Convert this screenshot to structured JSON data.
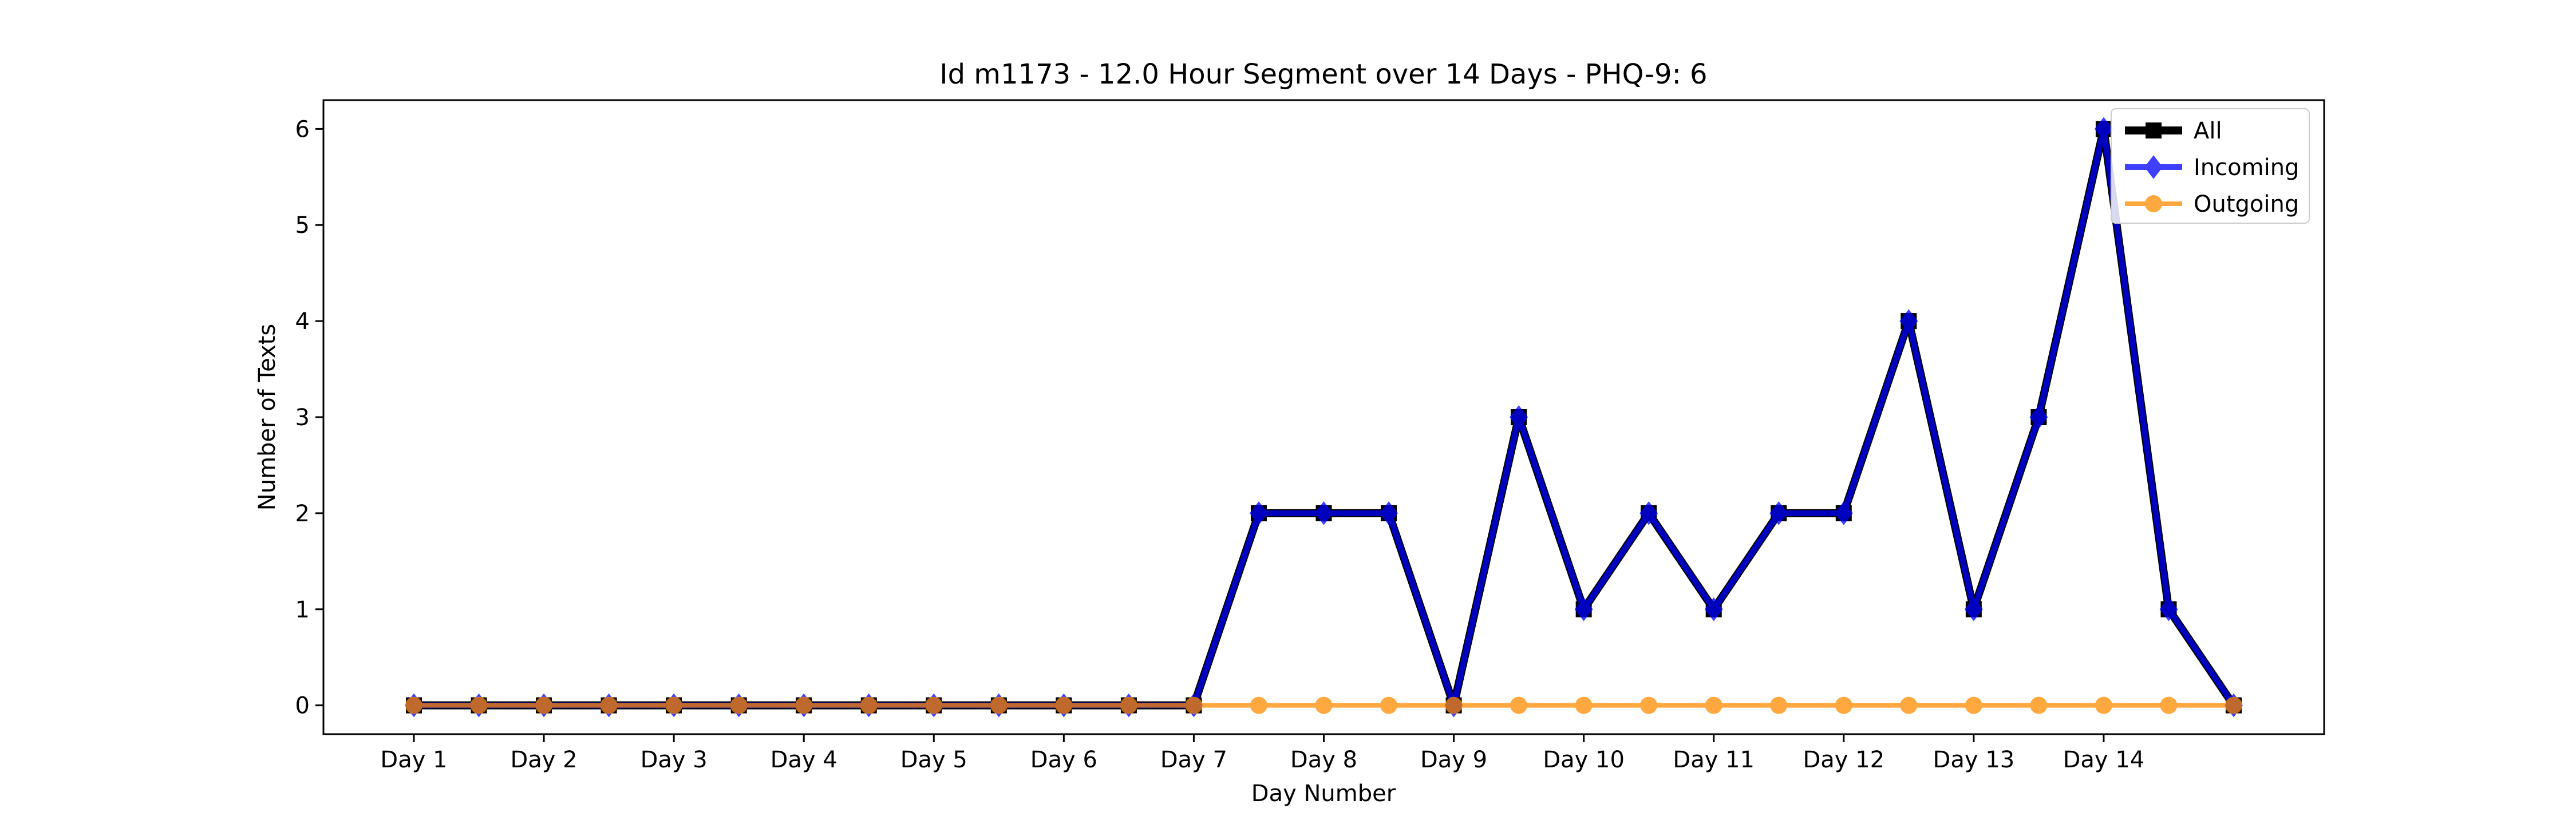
{
  "chart_data": {
    "type": "line",
    "title": "Id m1173 - 12.0 Hour Segment over 14 Days - PHQ-9: 6",
    "xlabel": "Day Number",
    "ylabel": "Number of Texts",
    "x_tick_labels": [
      "Day 1",
      "Day 2",
      "Day 3",
      "Day 4",
      "Day 5",
      "Day 6",
      "Day 7",
      "Day 8",
      "Day 9",
      "Day 10",
      "Day 11",
      "Day 12",
      "Day 13",
      "Day 14"
    ],
    "y_ticks": [
      0,
      1,
      2,
      3,
      4,
      5,
      6
    ],
    "ylim": [
      -0.3,
      6.3
    ],
    "segments_per_day": 2,
    "legend_position": "top-right",
    "grid": false,
    "series": [
      {
        "name": "All",
        "color": "#000000",
        "marker": "square",
        "values": [
          0,
          0,
          0,
          0,
          0,
          0,
          0,
          0,
          0,
          0,
          0,
          0,
          0,
          2,
          2,
          2,
          0,
          3,
          1,
          2,
          1,
          2,
          2,
          4,
          1,
          3,
          6,
          1,
          0
        ]
      },
      {
        "name": "Incoming",
        "color": "#0000ff",
        "marker": "diamond",
        "values": [
          0,
          0,
          0,
          0,
          0,
          0,
          0,
          0,
          0,
          0,
          0,
          0,
          0,
          2,
          2,
          2,
          0,
          3,
          1,
          2,
          1,
          2,
          2,
          4,
          1,
          3,
          6,
          1,
          0
        ]
      },
      {
        "name": "Outgoing",
        "color": "#ff8c00",
        "marker": "circle",
        "values": [
          0,
          0,
          0,
          0,
          0,
          0,
          0,
          0,
          0,
          0,
          0,
          0,
          0,
          0,
          0,
          0,
          0,
          0,
          0,
          0,
          0,
          0,
          0,
          0,
          0,
          0,
          0,
          0,
          0
        ]
      }
    ]
  }
}
